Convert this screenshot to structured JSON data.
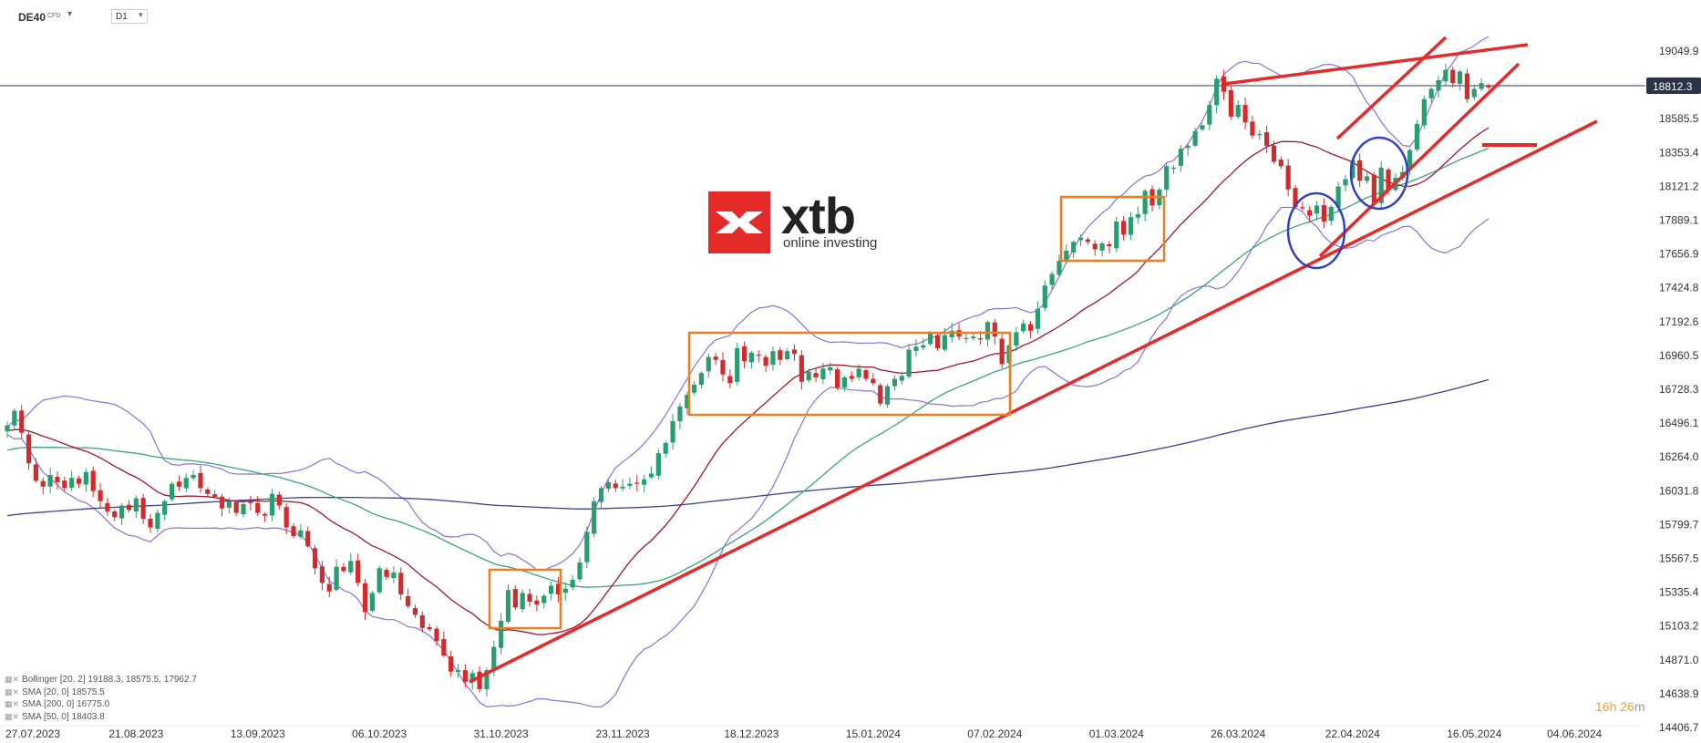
{
  "header": {
    "symbol": "DE40",
    "symbol_type": "CFD",
    "timeframe": "D1"
  },
  "logo": {
    "brand": "xtb",
    "tagline": "online investing"
  },
  "countdown": {
    "hours": "16",
    "hours_unit": "h",
    "minutes": "26",
    "minutes_unit": "m"
  },
  "legend": [
    {
      "label": "Bollinger",
      "params": "[20, 2]",
      "values": "19188.3,   18575.5,   17962.7"
    },
    {
      "label": "SMA",
      "params": "[20, 0]",
      "values": "18575.5"
    },
    {
      "label": "SMA",
      "params": "[200, 0]",
      "values": "16775.0"
    },
    {
      "label": "SMA",
      "params": "[50, 0]",
      "values": "18403.8"
    }
  ],
  "chart_data": {
    "type": "candlestick",
    "current_price": "18812.3",
    "current_price_value": 18812.3,
    "y_ticks": [
      {
        "label": "19049.9",
        "value": 19049.9
      },
      {
        "label": "18585.5",
        "value": 18585.5
      },
      {
        "label": "18353.4",
        "value": 18353.4
      },
      {
        "label": "18121.2",
        "value": 18121.2
      },
      {
        "label": "17889.1",
        "value": 17889.1
      },
      {
        "label": "17656.9",
        "value": 17656.9
      },
      {
        "label": "17424.8",
        "value": 17424.8
      },
      {
        "label": "17192.6",
        "value": 17192.6
      },
      {
        "label": "16960.5",
        "value": 16960.5
      },
      {
        "label": "16728.3",
        "value": 16728.3
      },
      {
        "label": "16496.1",
        "value": 16496.1
      },
      {
        "label": "16264.0",
        "value": 16264.0
      },
      {
        "label": "16031.8",
        "value": 16031.8
      },
      {
        "label": "15799.7",
        "value": 15799.7
      },
      {
        "label": "15567.5",
        "value": 15567.5
      },
      {
        "label": "15335.4",
        "value": 15335.4
      },
      {
        "label": "15103.2",
        "value": 15103.2
      },
      {
        "label": "14871.0",
        "value": 14871.0
      },
      {
        "label": "14638.9",
        "value": 14638.9
      },
      {
        "label": "14406.7",
        "value": 14406.7
      }
    ],
    "x_ticks": [
      {
        "label": "27.07.2023",
        "index": 0
      },
      {
        "label": "21.08.2023",
        "index": 18
      },
      {
        "label": "13.09.2023",
        "index": 35
      },
      {
        "label": "06.10.2023",
        "index": 52
      },
      {
        "label": "31.10.2023",
        "index": 69
      },
      {
        "label": "23.11.2023",
        "index": 86
      },
      {
        "label": "18.12.2023",
        "index": 104
      },
      {
        "label": "15.01.2024",
        "index": 121
      },
      {
        "label": "07.02.2024",
        "index": 138
      },
      {
        "label": "01.03.2024",
        "index": 155
      },
      {
        "label": "26.03.2024",
        "index": 172
      },
      {
        "label": "22.04.2024",
        "index": 188
      },
      {
        "label": "16.05.2024",
        "index": 205
      },
      {
        "label": "04.06.2024",
        "index": 219
      }
    ],
    "closes": [
      16480,
      16580,
      16430,
      16220,
      16100,
      16060,
      16140,
      16090,
      16050,
      16120,
      16080,
      16160,
      16030,
      15960,
      15890,
      15850,
      15930,
      15900,
      15980,
      15840,
      15780,
      15880,
      15960,
      16080,
      16060,
      16120,
      16140,
      16050,
      16010,
      15990,
      15910,
      15960,
      15880,
      15940,
      15950,
      15880,
      15860,
      16010,
      15930,
      15780,
      15720,
      15760,
      15650,
      15500,
      15400,
      15340,
      15510,
      15480,
      15550,
      15400,
      15200,
      15330,
      15500,
      15440,
      15470,
      15320,
      15240,
      15180,
      15090,
      15080,
      15000,
      14900,
      14790,
      14800,
      14720,
      14780,
      14670,
      14800,
      14960,
      15140,
      15350,
      15230,
      15330,
      15270,
      15250,
      15310,
      15380,
      15320,
      15360,
      15420,
      15540,
      15750,
      15960,
      16050,
      16090,
      16050,
      16060,
      16080,
      16080,
      16110,
      16150,
      16290,
      16360,
      16510,
      16610,
      16690,
      16760,
      16840,
      16950,
      16930,
      16830,
      16770,
      17010,
      16920,
      16980,
      16960,
      16890,
      16990,
      16930,
      16990,
      16970,
      16780,
      16850,
      16810,
      16870,
      16880,
      16740,
      16810,
      16800,
      16870,
      16800,
      16770,
      16630,
      16750,
      16800,
      16820,
      17000,
      17020,
      17030,
      17110,
      17010,
      17100,
      17130,
      17090,
      17080,
      17090,
      17070,
      17190,
      17090,
      16900,
      17030,
      17120,
      17180,
      17130,
      17280,
      17440,
      17520,
      17610,
      17680,
      17740,
      17770,
      17740,
      17690,
      17730,
      17710,
      17880,
      17790,
      17910,
      17930,
      18090,
      17990,
      18100,
      18260,
      18250,
      18380,
      18400,
      18500,
      18540,
      18680,
      18860,
      18770,
      18600,
      18680,
      18560,
      18470,
      18480,
      18400,
      18290,
      18260,
      18100,
      17980,
      17970,
      17920,
      17990,
      17880,
      17980,
      18120,
      18170,
      18300,
      18160,
      18190,
      18000,
      18250,
      18100,
      18180,
      18220,
      18370,
      18550,
      18720,
      18790,
      18850,
      18920,
      18830,
      18910,
      18720,
      18790,
      18830,
      18800
    ]
  }
}
